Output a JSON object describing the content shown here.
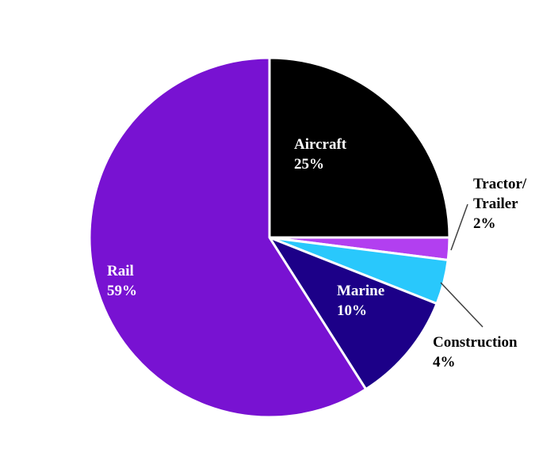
{
  "chart_data": {
    "type": "pie",
    "title": "",
    "slices": [
      {
        "label_lines": [
          "Aircraft"
        ],
        "value": 25,
        "value_text": "25%",
        "color": "#000000",
        "label_color": "#ffffff"
      },
      {
        "label_lines": [
          "Tractor/",
          "Trailer"
        ],
        "value": 2,
        "value_text": "2%",
        "color": "#b23ff0",
        "label_color": "#000000"
      },
      {
        "label_lines": [
          "Construction"
        ],
        "value": 4,
        "value_text": "4%",
        "color": "#29c8fc",
        "label_color": "#000000"
      },
      {
        "label_lines": [
          "Marine"
        ],
        "value": 10,
        "value_text": "10%",
        "color": "#1c0088",
        "label_color": "#ffffff"
      },
      {
        "label_lines": [
          "Rail"
        ],
        "value": 59,
        "value_text": "59%",
        "color": "#7812d2",
        "label_color": "#ffffff"
      }
    ],
    "legend": "none",
    "start_angle": "12 o'clock",
    "direction": "clockwise"
  }
}
